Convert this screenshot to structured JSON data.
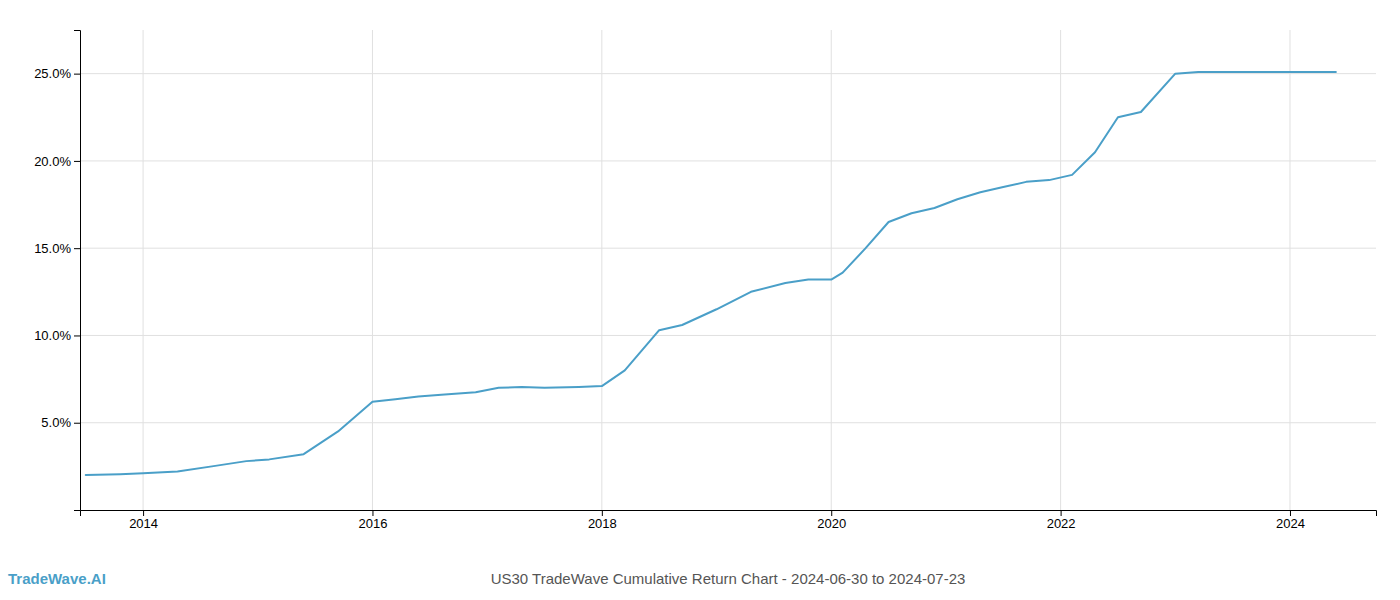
{
  "chart_data": {
    "type": "line",
    "title": "US30 TradeWave Cumulative Return Chart - 2024-06-30 to 2024-07-23",
    "annotations": [
      "TradeWave.AI"
    ],
    "color": "#4a9fc8",
    "x": [
      2013.5,
      2013.8,
      2014.0,
      2014.3,
      2014.6,
      2014.9,
      2015.1,
      2015.4,
      2015.7,
      2016.0,
      2016.2,
      2016.4,
      2016.6,
      2016.9,
      2017.1,
      2017.3,
      2017.5,
      2017.8,
      2018.0,
      2018.2,
      2018.5,
      2018.7,
      2019.0,
      2019.3,
      2019.6,
      2019.8,
      2020.0,
      2020.1,
      2020.3,
      2020.5,
      2020.7,
      2020.9,
      2021.1,
      2021.3,
      2021.5,
      2021.7,
      2021.9,
      2022.1,
      2022.3,
      2022.5,
      2022.7,
      2023.0,
      2023.2,
      2023.4,
      2023.6,
      2024.0,
      2024.4
    ],
    "values": [
      2.0,
      2.05,
      2.1,
      2.2,
      2.5,
      2.8,
      2.9,
      3.2,
      4.5,
      6.2,
      6.35,
      6.5,
      6.6,
      6.75,
      7.0,
      7.05,
      7.0,
      7.05,
      7.1,
      8.0,
      10.3,
      10.6,
      11.5,
      12.5,
      13.0,
      13.2,
      13.2,
      13.6,
      15.0,
      16.5,
      17.0,
      17.3,
      17.8,
      18.2,
      18.5,
      18.8,
      18.9,
      19.2,
      20.5,
      22.5,
      22.8,
      25.0,
      25.1,
      25.1,
      25.1,
      25.1,
      25.1
    ],
    "xlim": [
      2013.45,
      2024.75
    ],
    "ylim": [
      0.0,
      27.5
    ],
    "xticks": [
      2014,
      2016,
      2018,
      2020,
      2022,
      2024
    ],
    "yticks": [
      {
        "value": 5.0,
        "label": "5.0%"
      },
      {
        "value": 10.0,
        "label": "10.0%"
      },
      {
        "value": 15.0,
        "label": "15.0%"
      },
      {
        "value": 20.0,
        "label": "20.0%"
      },
      {
        "value": 25.0,
        "label": "25.0%"
      }
    ],
    "grid": true
  }
}
